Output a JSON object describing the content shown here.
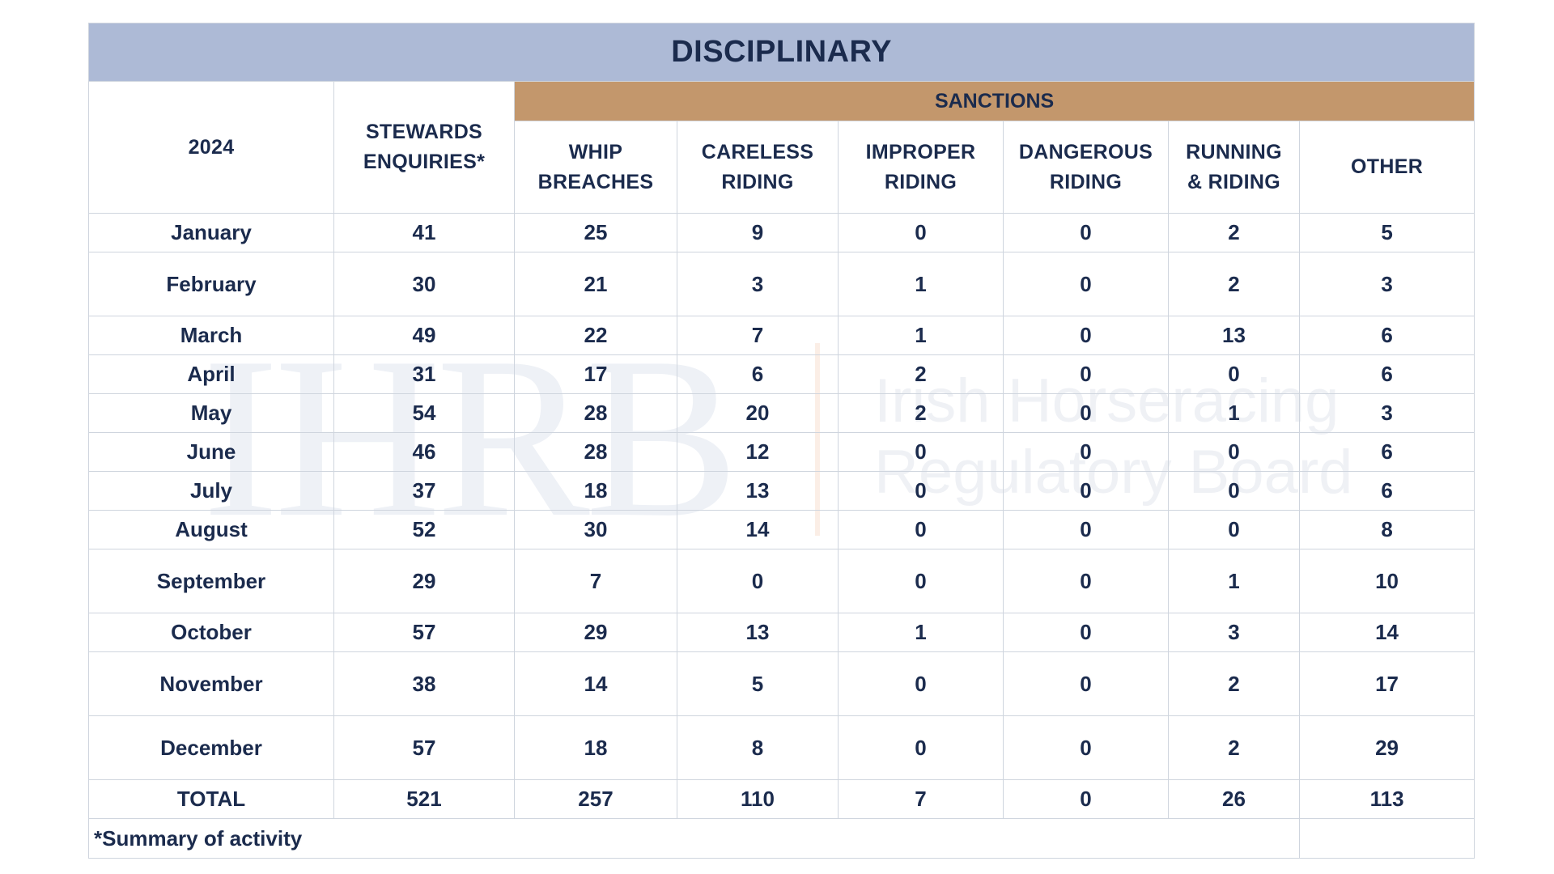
{
  "watermark": {
    "logo": "IHRB",
    "name_line1": "Irish Horseracing",
    "name_line2": "Regulatory Board"
  },
  "table": {
    "title": "DISCIPLINARY",
    "sanctions_label": "SANCTIONS",
    "year_label": "2024",
    "stewards_header": [
      "STEWARDS",
      "ENQUIRIES*"
    ],
    "sanction_headers": [
      [
        "WHIP",
        "BREACHES"
      ],
      [
        "CARELESS",
        "RIDING"
      ],
      [
        "IMPROPER",
        "RIDING"
      ],
      [
        "DANGEROUS",
        "RIDING"
      ],
      [
        "RUNNING",
        "& RIDING"
      ],
      [
        "OTHER"
      ]
    ],
    "rows": [
      {
        "month": "January",
        "values": [
          "41",
          "25",
          "9",
          "0",
          "0",
          "2",
          "5"
        ]
      },
      {
        "month": "February",
        "values": [
          "30",
          "21",
          "3",
          "1",
          "0",
          "2",
          "3"
        ]
      },
      {
        "month": "March",
        "values": [
          "49",
          "22",
          "7",
          "1",
          "0",
          "13",
          "6"
        ]
      },
      {
        "month": "April",
        "values": [
          "31",
          "17",
          "6",
          "2",
          "0",
          "0",
          "6"
        ]
      },
      {
        "month": "May",
        "values": [
          "54",
          "28",
          "20",
          "2",
          "0",
          "1",
          "3"
        ]
      },
      {
        "month": "June",
        "values": [
          "46",
          "28",
          "12",
          "0",
          "0",
          "0",
          "6"
        ]
      },
      {
        "month": "July",
        "values": [
          "37",
          "18",
          "13",
          "0",
          "0",
          "0",
          "6"
        ]
      },
      {
        "month": "August",
        "values": [
          "52",
          "30",
          "14",
          "0",
          "0",
          "0",
          "8"
        ]
      },
      {
        "month": "September",
        "values": [
          "29",
          "7",
          "0",
          "0",
          "0",
          "1",
          "10"
        ]
      },
      {
        "month": "October",
        "values": [
          "57",
          "29",
          "13",
          "1",
          "0",
          "3",
          "14"
        ]
      },
      {
        "month": "November",
        "values": [
          "38",
          "14",
          "5",
          "0",
          "0",
          "2",
          "17"
        ]
      },
      {
        "month": "December",
        "values": [
          "57",
          "18",
          "8",
          "0",
          "0",
          "2",
          "29"
        ]
      }
    ],
    "total": {
      "label": "TOTAL",
      "values": [
        "521",
        "257",
        "110",
        "7",
        "0",
        "26",
        "113"
      ]
    },
    "footnote": "*Summary of activity"
  },
  "colors": {
    "title_bg": "#adbad6",
    "sanctions_bg": "#c3976c",
    "text": "#1b2b4d",
    "grid": "#cfd5de"
  }
}
